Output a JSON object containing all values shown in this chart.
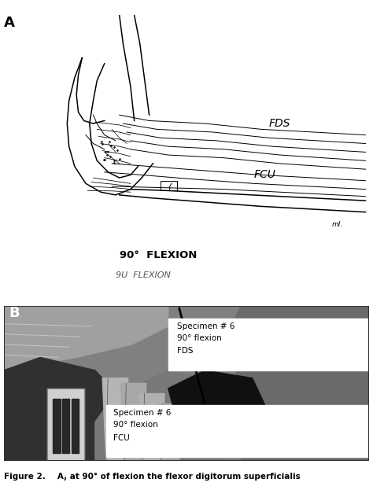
{
  "fig_width": 4.74,
  "fig_height": 6.37,
  "dpi": 100,
  "bg_color": "#ffffff",
  "panel_A_label": "A",
  "panel_B_label": "B",
  "label_FDS": "FDS",
  "label_FCU": "FCU",
  "flexion_text1": "90°  FLEXION",
  "flexion_text2": "9U  FLEXION",
  "specimen_top_line1": "Specimen # 6",
  "specimen_top_line2": "90° flexion",
  "specimen_top_line3": "FDS",
  "specimen_bot_line1": "Specimen # 6",
  "specimen_bot_line2": "90° flexion",
  "specimen_bot_line3": "FCU",
  "caption_text": "Figure 2.",
  "caption_text2": "   A, at 90° of flexion the flexor digitorum superficialis",
  "lc": "#000000",
  "panel_B_mid_gray": "#707070",
  "panel_B_light_gray": "#aaaaaa",
  "panel_B_dark": "#282828",
  "panel_B_darker": "#181818",
  "white_label": "#ffffff",
  "gray_label": "#e8e8e8"
}
